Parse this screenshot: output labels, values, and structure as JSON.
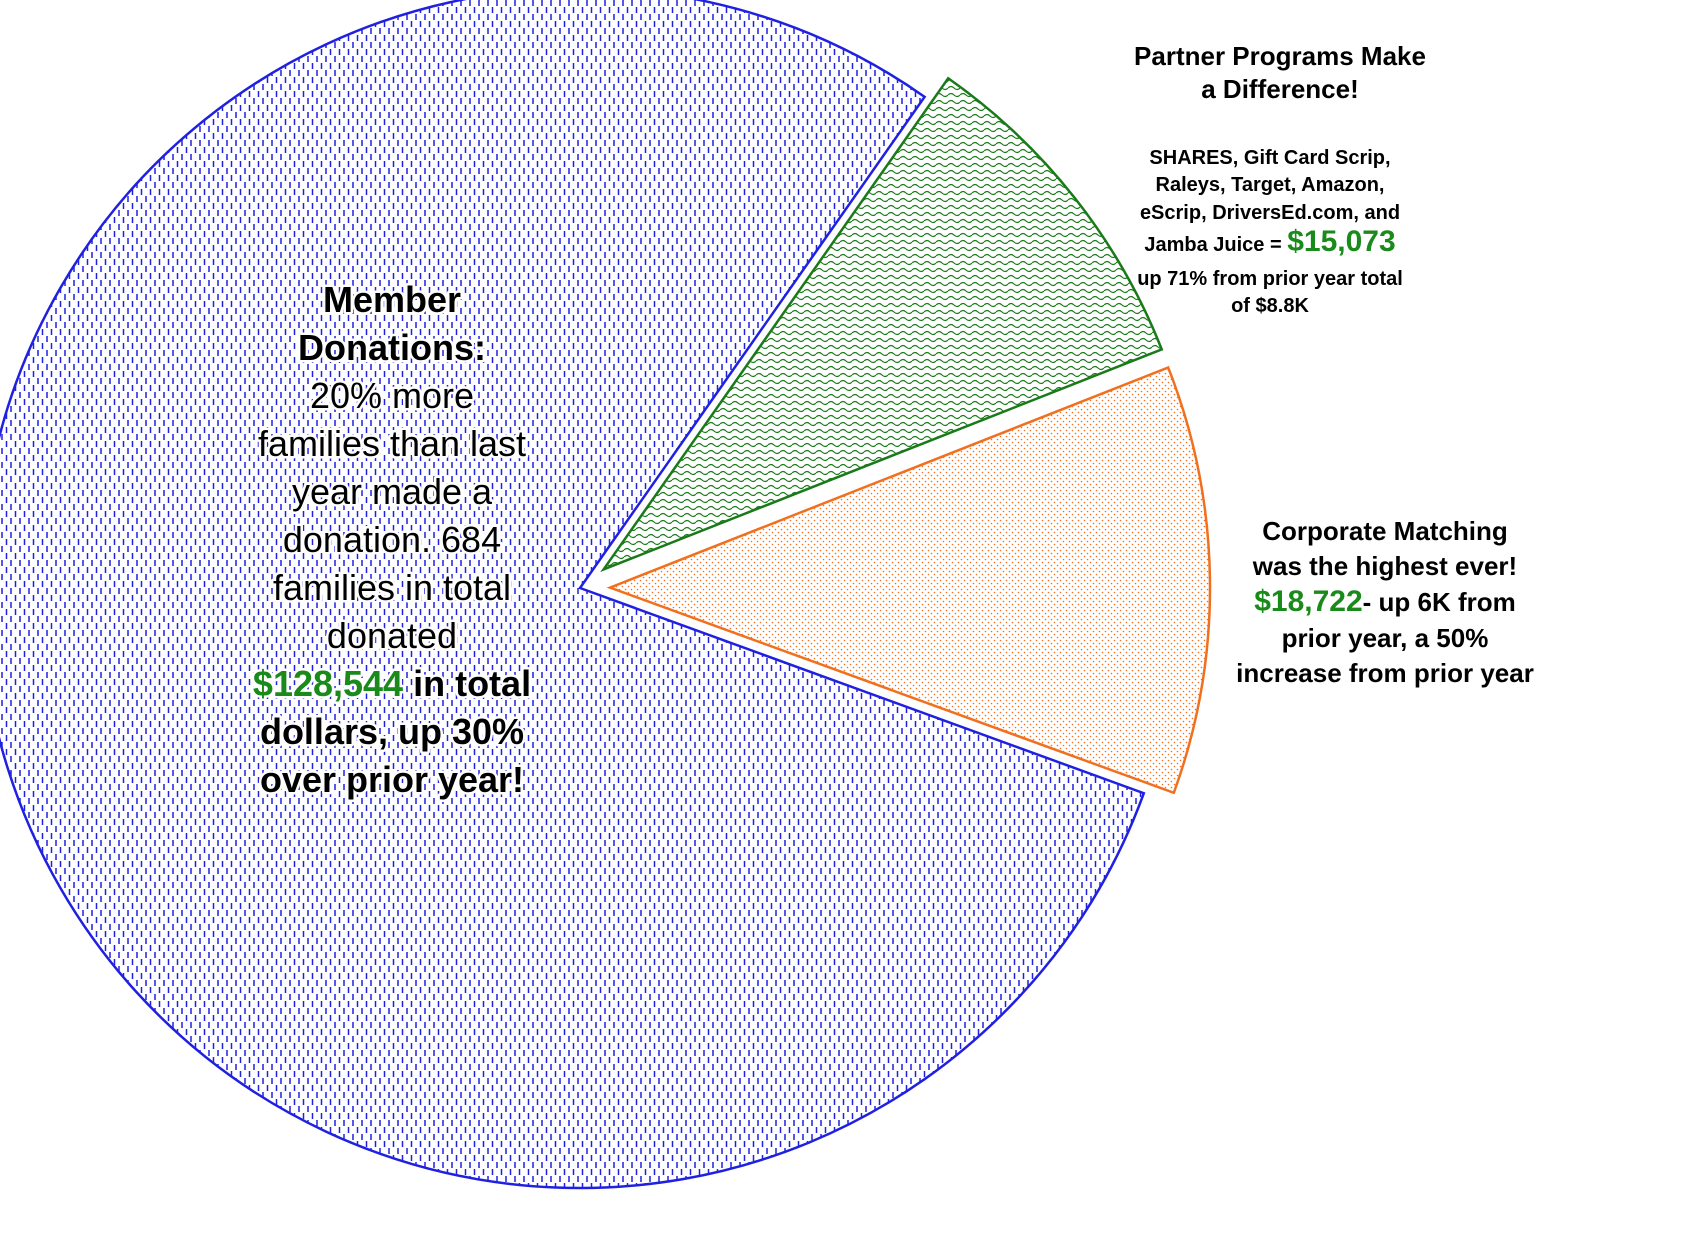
{
  "chart_data": {
    "type": "pie",
    "values": [
      128544,
      15073,
      18722
    ],
    "value_labels": [
      "$128,544",
      "$15,073",
      "$18,722"
    ],
    "colors": [
      "#2020e0",
      "#1a7a1a",
      "#f07020"
    ],
    "exploded": [
      false,
      true,
      true
    ],
    "labels": [
      {
        "lines": [
          "Member",
          "Donations:",
          "20% more",
          "families than last",
          "year made a",
          "donation.  684",
          "families in total",
          "donated"
        ],
        "after": " in total",
        "tail": [
          "dollars, up 30%",
          "over prior year!"
        ]
      },
      {
        "lines": [
          "Partner Programs Make",
          "a Difference!",
          "SHARES, Gift Card Scrip,",
          "Raleys, Target, Amazon,",
          "eScrip, DriversEd.com, and"
        ],
        "before": "Jamba Juice = ",
        "tail": [
          "up 71% from prior year total",
          "of $8.8K"
        ]
      },
      {
        "lines": [
          "Corporate Matching",
          "was the highest ever!"
        ],
        "after": "- up 6K from",
        "tail": [
          "prior year, a 50%",
          "increase from prior year"
        ]
      }
    ]
  }
}
